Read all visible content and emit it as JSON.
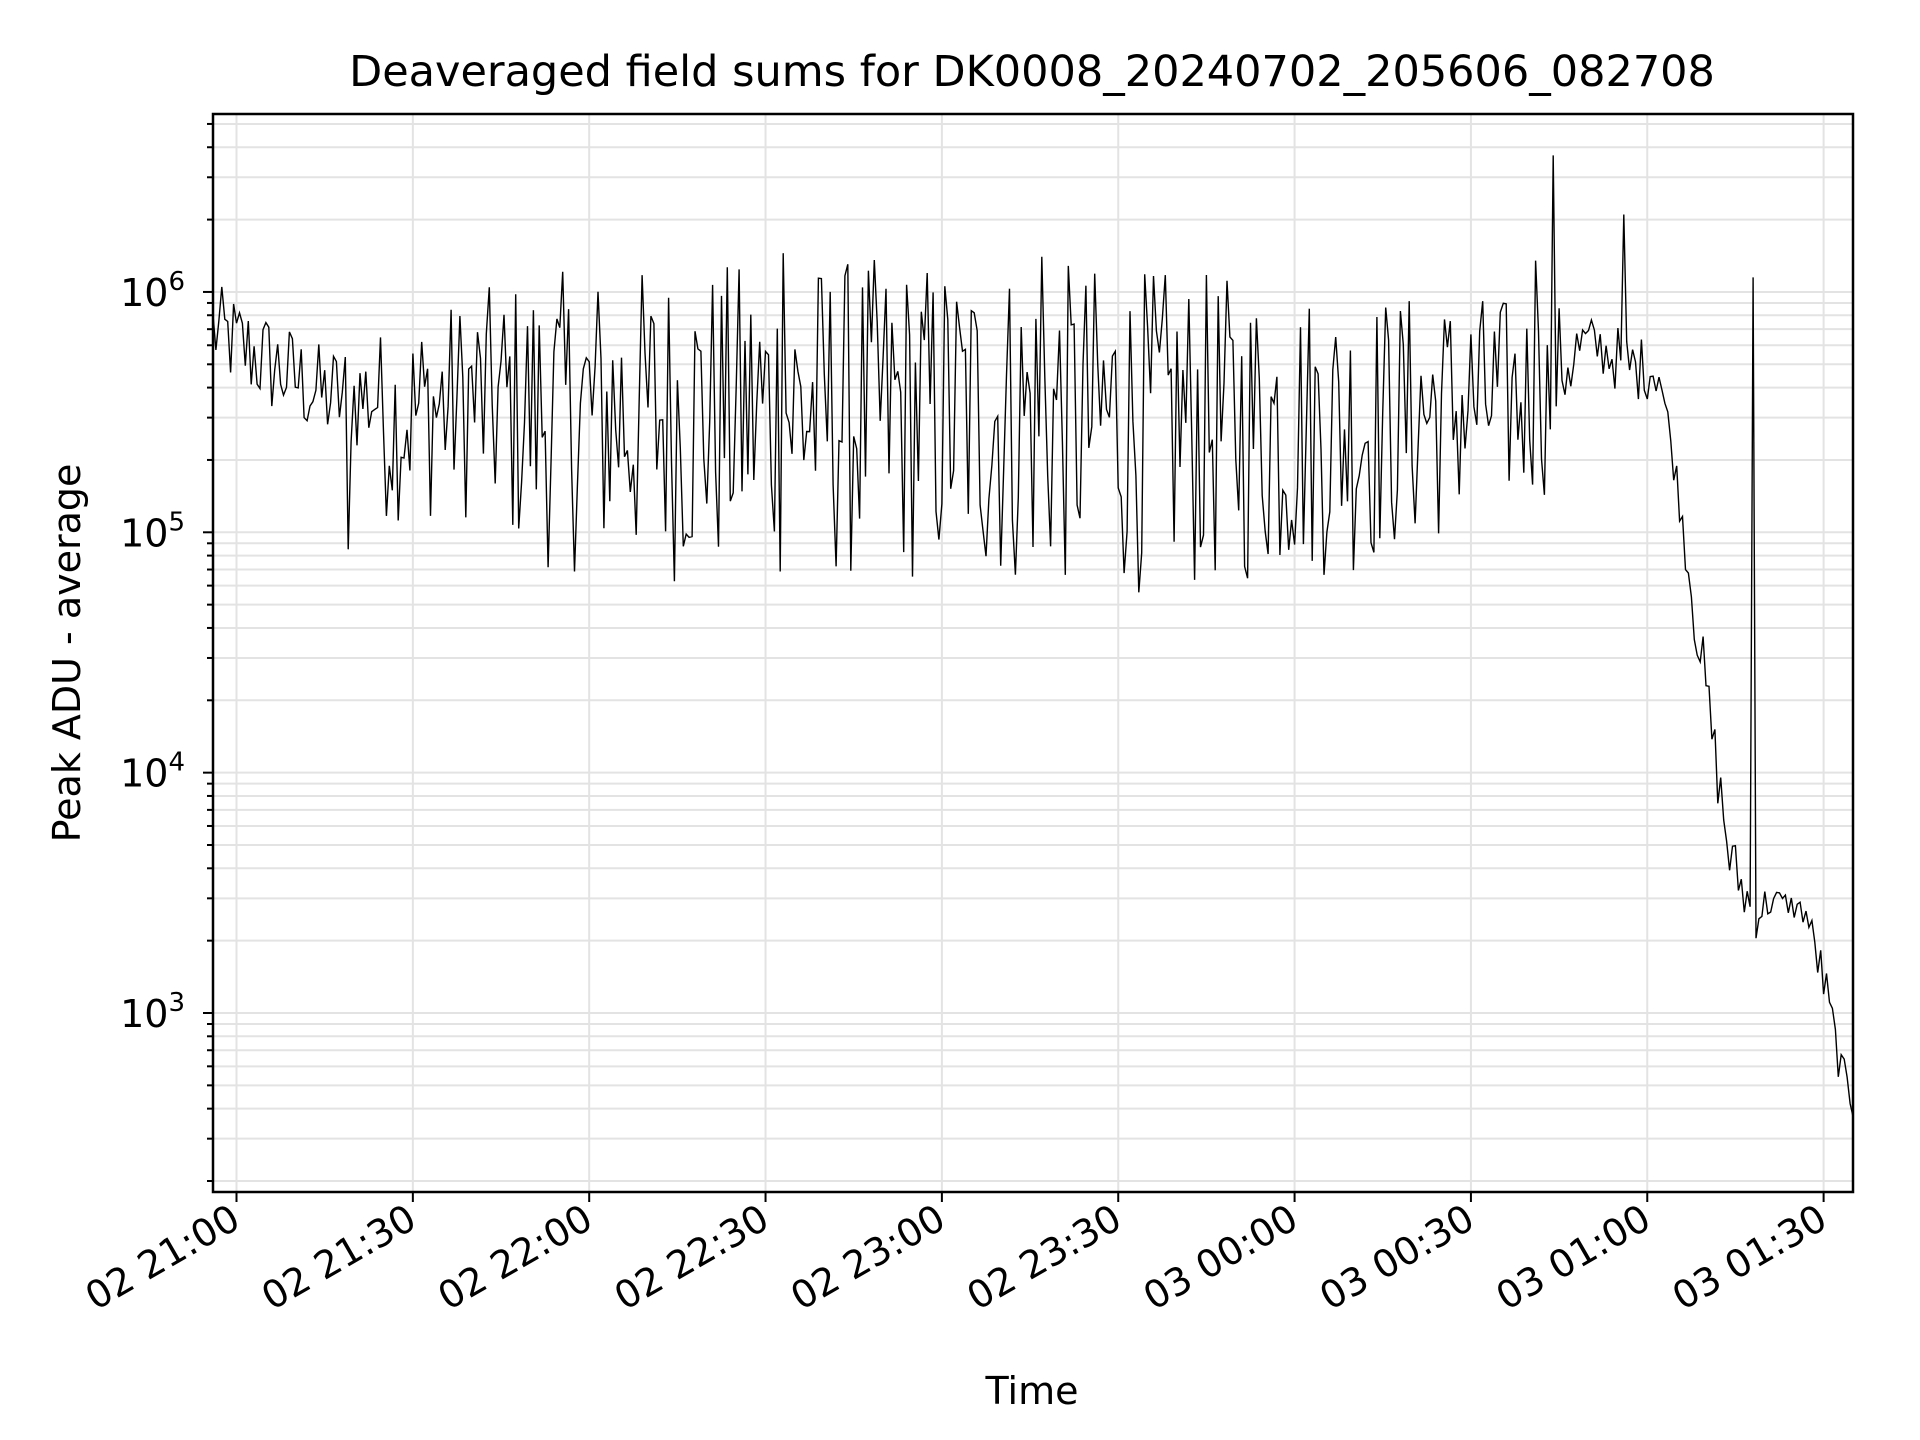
{
  "chart_data": {
    "type": "line",
    "title": "Deaveraged field sums for DK0008_20240702_205606_082708",
    "xlabel": "Time",
    "ylabel": "Peak ADU - average",
    "yscale": "log",
    "xlim": [
      "02 20:56",
      "03 01:35"
    ],
    "ylim": [
      180,
      5500000
    ],
    "grid": true,
    "line_color": "#000000",
    "grid_color": "#e3e3e3",
    "x_ticks": [
      {
        "label": "02 21:00",
        "minutes": 0
      },
      {
        "label": "02 21:30",
        "minutes": 30
      },
      {
        "label": "02 22:00",
        "minutes": 60
      },
      {
        "label": "02 22:30",
        "minutes": 90
      },
      {
        "label": "02 23:00",
        "minutes": 120
      },
      {
        "label": "02 23:30",
        "minutes": 150
      },
      {
        "label": "03 00:00",
        "minutes": 180
      },
      {
        "label": "03 00:30",
        "minutes": 210
      },
      {
        "label": "03 01:00",
        "minutes": 240
      },
      {
        "label": "03 01:30",
        "minutes": 270
      }
    ],
    "y_ticks": [
      {
        "base": "10",
        "exp": "3",
        "value": 1000
      },
      {
        "base": "10",
        "exp": "4",
        "value": 10000
      },
      {
        "base": "10",
        "exp": "5",
        "value": 100000
      },
      {
        "base": "10",
        "exp": "6",
        "value": 1000000
      }
    ],
    "series": [
      {
        "x_start": "02 20:56",
        "x_step_minutes": 0.5,
        "envelope": [
          {
            "time": "02 20:56",
            "low": 300000,
            "high": 1100000
          },
          {
            "time": "02 21:05",
            "low": 200000,
            "high": 850000
          },
          {
            "time": "02 21:15",
            "low": 150000,
            "high": 600000
          },
          {
            "time": "02 21:25",
            "low": 110000,
            "high": 700000
          },
          {
            "time": "02 21:40",
            "low": 110000,
            "high": 1000000
          },
          {
            "time": "02 21:50",
            "low": 70000,
            "high": 1200000
          },
          {
            "time": "02 22:15",
            "low": 60000,
            "high": 1300000
          },
          {
            "time": "02 22:45",
            "low": 60000,
            "high": 1400000
          },
          {
            "time": "02 23:15",
            "low": 55000,
            "high": 1350000
          },
          {
            "time": "02 23:45",
            "low": 55000,
            "high": 1200000
          },
          {
            "time": "03 00:10",
            "low": 65000,
            "high": 1000000
          },
          {
            "time": "03 00:30",
            "low": 100000,
            "high": 1000000
          },
          {
            "time": "03 00:45",
            "low": 150000,
            "high": 900000
          },
          {
            "time": "03 00:50",
            "low": 400000,
            "high": 800000
          },
          {
            "time": "03 00:57",
            "low": 250000,
            "high": 700000
          },
          {
            "time": "03 01:02",
            "low": 300000,
            "high": 600000
          },
          {
            "time": "03 01:05",
            "low": 120000,
            "high": 200000
          },
          {
            "time": "03 01:08",
            "low": 25000,
            "high": 70000
          },
          {
            "time": "03 01:11",
            "low": 8000,
            "high": 20000
          },
          {
            "time": "03 01:14",
            "low": 2500,
            "high": 6000
          },
          {
            "time": "03 01:18",
            "low": 1500,
            "high": 3500
          },
          {
            "time": "03 01:22",
            "low": 2500,
            "high": 3300
          },
          {
            "time": "03 01:27",
            "low": 2000,
            "high": 3000
          },
          {
            "time": "03 01:30",
            "low": 800,
            "high": 1800
          },
          {
            "time": "03 01:33",
            "low": 400,
            "high": 700
          },
          {
            "time": "03 01:35",
            "low": 300,
            "high": 500
          }
        ],
        "spikes": [
          {
            "time": "03 00:44",
            "value": 3700000
          },
          {
            "time": "03 00:56",
            "value": 2100000
          },
          {
            "time": "03 00:41",
            "value": 1350000
          },
          {
            "time": "02 23:17",
            "value": 1400000
          },
          {
            "time": "02 22:33",
            "value": 1450000
          },
          {
            "time": "02 21:19",
            "value": 85000
          },
          {
            "time": "03 01:18",
            "value": 1150000
          }
        ]
      }
    ]
  }
}
